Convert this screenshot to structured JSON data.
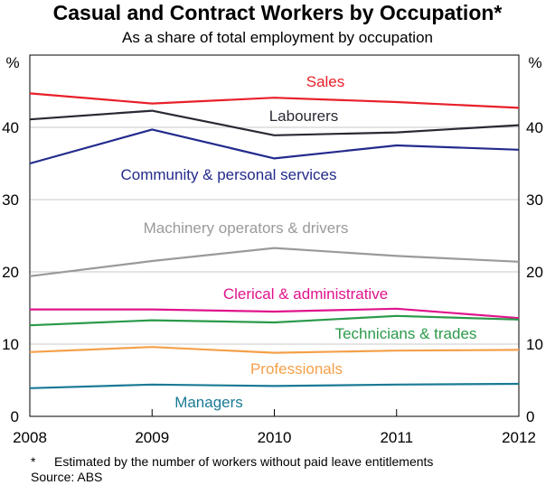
{
  "chart_data": {
    "type": "line",
    "title": "Casual and Contract Workers by Occupation*",
    "subtitle": "As a share of total employment by occupation",
    "y_unit_left": "%",
    "y_unit_right": "%",
    "x": [
      "2008",
      "2009",
      "2010",
      "2011",
      "2012"
    ],
    "yticks": [
      "0",
      "10",
      "20",
      "30",
      "40"
    ],
    "ylim": [
      0,
      50
    ],
    "grid": true,
    "series": [
      {
        "name": "Sales",
        "color": "#e8202a",
        "values": [
          44.7,
          43.3,
          44.1,
          43.5,
          42.7
        ]
      },
      {
        "name": "Labourers",
        "color": "#2a2a35",
        "values": [
          41.1,
          42.3,
          38.9,
          39.3,
          40.3
        ]
      },
      {
        "name": "Community & personal services",
        "color": "#232a8c",
        "values": [
          35.0,
          39.7,
          35.7,
          37.5,
          36.9
        ]
      },
      {
        "name": "Machinery operators & drivers",
        "color": "#9a9a9a",
        "values": [
          19.4,
          21.5,
          23.3,
          22.2,
          21.4
        ]
      },
      {
        "name": "Clerical & administrative",
        "color": "#e0148c",
        "values": [
          14.8,
          14.8,
          14.5,
          14.9,
          13.6
        ]
      },
      {
        "name": "Technicians & trades",
        "color": "#2a9a4a",
        "values": [
          12.6,
          13.3,
          13.0,
          13.9,
          13.4
        ]
      },
      {
        "name": "Professionals",
        "color": "#f5a04a",
        "values": [
          8.9,
          9.6,
          8.8,
          9.1,
          9.2
        ]
      },
      {
        "name": "Managers",
        "color": "#1a7a95",
        "values": [
          3.9,
          4.4,
          4.2,
          4.4,
          4.5
        ]
      }
    ]
  },
  "footnote": {
    "marker": "*",
    "text": "Estimated by the number of workers without paid leave entitlements"
  },
  "source": "Source: ABS"
}
